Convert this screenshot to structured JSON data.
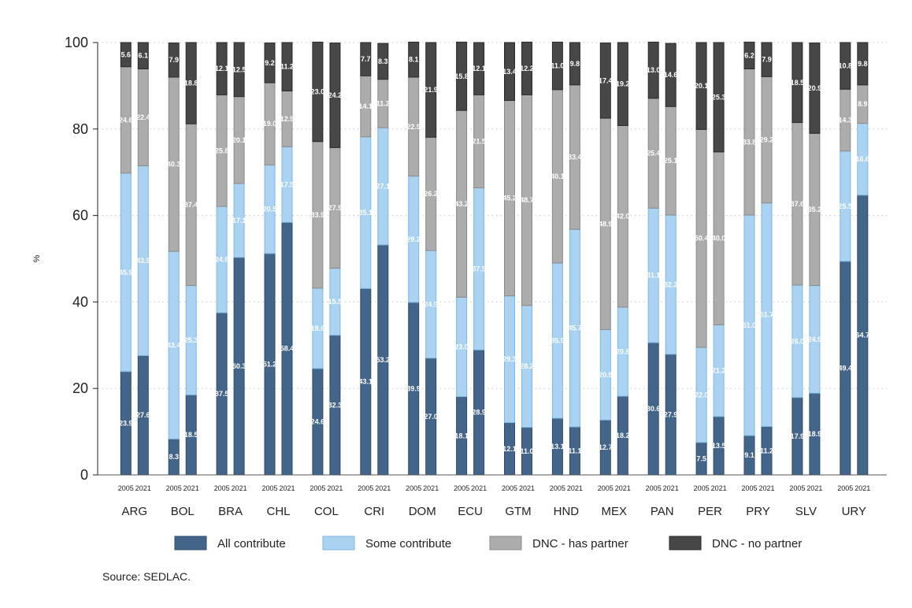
{
  "chart_data": {
    "type": "bar",
    "stacked": true,
    "ylabel": "%",
    "ylim": [
      0,
      100
    ],
    "yticks": [
      0,
      20,
      40,
      60,
      80,
      100
    ],
    "grid": "horizontal dotted",
    "legend_placement": "bottom",
    "source_note": "Source: SEDLAC.",
    "years": [
      "2005",
      "2021"
    ],
    "countries": [
      "ARG",
      "BOL",
      "BRA",
      "CHL",
      "COL",
      "CRI",
      "DOM",
      "ECU",
      "GTM",
      "HND",
      "MEX",
      "PAN",
      "PER",
      "PRY",
      "SLV",
      "URY"
    ],
    "series": [
      {
        "name": "All contribute",
        "color": "#44658a",
        "border": "#2f4a68",
        "values": [
          [
            23.9,
            27.6
          ],
          [
            8.3,
            18.5
          ],
          [
            37.5,
            50.3
          ],
          [
            51.2,
            58.4
          ],
          [
            24.6,
            32.3
          ],
          [
            43.1,
            53.2
          ],
          [
            39.9,
            27.0
          ],
          [
            18.1,
            28.9
          ],
          [
            12.1,
            11.0
          ],
          [
            13.1,
            11.1
          ],
          [
            12.7,
            18.2
          ],
          [
            30.6,
            27.9
          ],
          [
            7.5,
            13.5
          ],
          [
            9.1,
            11.2
          ],
          [
            17.9,
            18.9
          ],
          [
            49.4,
            64.7
          ]
        ]
      },
      {
        "name": "Some contribute",
        "color": "#aad3f2",
        "border": "#7fb6e0",
        "values": [
          [
            45.9,
            43.9
          ],
          [
            43.4,
            25.3
          ],
          [
            24.6,
            17.1
          ],
          [
            20.5,
            17.5
          ],
          [
            18.6,
            15.5
          ],
          [
            35.1,
            27.1
          ],
          [
            29.2,
            24.9
          ],
          [
            23.0,
            37.5
          ],
          [
            29.3,
            28.2
          ],
          [
            35.9,
            45.7
          ],
          [
            20.9,
            20.6
          ],
          [
            31.1,
            32.2
          ],
          [
            22.0,
            21.2
          ],
          [
            51.0,
            51.7
          ],
          [
            26.0,
            24.9
          ],
          [
            25.5,
            16.6
          ]
        ]
      },
      {
        "name": "DNC - has partner",
        "color": "#acacac",
        "border": "#8a8a8a",
        "values": [
          [
            24.6,
            22.4
          ],
          [
            40.3,
            37.4
          ],
          [
            25.8,
            20.1
          ],
          [
            19.0,
            12.9
          ],
          [
            33.9,
            27.9
          ],
          [
            14.1,
            11.2
          ],
          [
            22.9,
            26.2
          ],
          [
            43.2,
            21.5
          ],
          [
            45.2,
            48.7
          ],
          [
            40.1,
            33.4
          ],
          [
            48.9,
            42.0
          ],
          [
            25.4,
            25.1
          ],
          [
            50.4,
            40.0
          ],
          [
            33.8,
            29.2
          ],
          [
            37.6,
            35.2
          ],
          [
            14.3,
            8.9
          ]
        ]
      },
      {
        "name": "DNC - no partner",
        "color": "#474747",
        "border": "#2a2a2a",
        "values": [
          [
            5.6,
            6.1
          ],
          [
            7.9,
            18.8
          ],
          [
            12.1,
            12.5
          ],
          [
            9.2,
            11.2
          ],
          [
            23.0,
            24.2
          ],
          [
            7.7,
            8.3
          ],
          [
            8.1,
            21.9
          ],
          [
            15.8,
            12.1
          ],
          [
            13.4,
            12.2
          ],
          [
            11.0,
            9.8
          ],
          [
            17.4,
            19.2
          ],
          [
            13.0,
            14.6
          ],
          [
            20.1,
            25.3
          ],
          [
            6.2,
            7.9
          ],
          [
            18.5,
            20.9
          ],
          [
            10.8,
            9.8
          ]
        ]
      }
    ],
    "labels": [
      [
        "23.9",
        "27.6",
        "45.9",
        "43.9",
        "24.6",
        "22.4",
        "5.6",
        "6.1"
      ],
      [
        "8.3",
        "18.5",
        "43.4",
        "25.3",
        "40.3",
        "37.4",
        "7.9",
        "18.8"
      ],
      [
        "37.5",
        "50.3",
        "24.6",
        "17.1",
        "25.8",
        "20.1",
        "12.1",
        "12.5"
      ],
      [
        "51.2",
        "58.4",
        "20.5",
        "17.5",
        "19.0",
        "12.9",
        "9.2",
        "11.2"
      ],
      [
        "24.6",
        "32.3",
        "18.6",
        "15.5",
        "33.9",
        "27.9",
        "23.0",
        "24.2"
      ],
      [
        "43.1",
        "53.2",
        "35.1",
        "27.1",
        "14.1",
        "11.2",
        "7.7",
        "8.3"
      ],
      [
        "39.9",
        "27.0",
        "29.2",
        "24.9",
        "22.9",
        "26.2",
        "8.1",
        "21.9"
      ],
      [
        "18.1",
        "28.9",
        "23.0",
        "37.5",
        "43.2",
        "21.5",
        "15.8",
        "12.1"
      ],
      [
        "12.1",
        "11.0",
        "29.3",
        "28.2",
        "45.2",
        "48.7",
        "13.4",
        "12.2"
      ],
      [
        "13.1",
        "11.1",
        "35.9",
        "45.7",
        "40.1",
        "33.4",
        "11.0",
        "9.8"
      ],
      [
        "12.7",
        "18.2",
        "20.9",
        "20.6",
        "48.9",
        "42.0",
        "17.4",
        "19.2"
      ],
      [
        "30.6",
        "27.9",
        "31.1",
        "32.2",
        "25.4",
        "25.1",
        "13.0",
        "14.6"
      ],
      [
        "7.5",
        "13.5",
        "22.0",
        "21.2",
        "50.4",
        "40.0",
        "20.1",
        "25.3"
      ],
      [
        "9.1",
        "11.2",
        "51.0",
        "51.7",
        "33.8",
        "29.2",
        "6.2",
        "7.9"
      ],
      [
        "17.9",
        "18.9",
        "26.0",
        "24.9",
        "37.6",
        "35.2",
        "18.5",
        "20.9"
      ],
      [
        "49.4",
        "64.7",
        "25.5",
        "16.6",
        "14.3",
        "8.9",
        "10.8",
        "9.8"
      ]
    ]
  }
}
